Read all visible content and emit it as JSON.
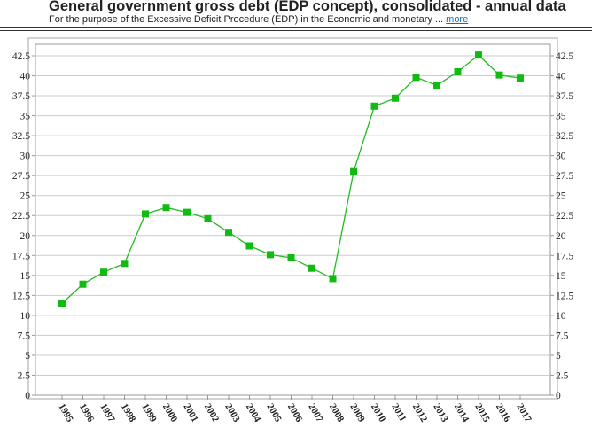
{
  "header": {
    "title": "General government gross debt (EDP concept), consolidated - annual data",
    "subtitle": "For the purpose of the Excessive Deficit Procedure (EDP) in the Economic and monetary ...",
    "more_label": "more"
  },
  "colors": {
    "series": "#22bb22",
    "marker": "#11bb11",
    "grid": "#cccccc",
    "frame": "#c4c4c4"
  },
  "chart_data": {
    "type": "line",
    "title": "General government gross debt (EDP concept), consolidated - annual data",
    "xlabel": "",
    "ylabel": "",
    "ylim": [
      0,
      42.5
    ],
    "ytick_step": 2.5,
    "grid": true,
    "yticks_both_sides": true,
    "categories": [
      "1995",
      "1996",
      "1997",
      "1998",
      "1999",
      "2000",
      "2001",
      "2002",
      "2003",
      "2004",
      "2005",
      "2006",
      "2007",
      "2008",
      "2009",
      "2010",
      "2011",
      "2012",
      "2013",
      "2014",
      "2015",
      "2016",
      "2017"
    ],
    "series": [
      {
        "values": [
          11.5,
          13.9,
          15.4,
          16.5,
          22.7,
          23.5,
          22.9,
          22.1,
          20.4,
          18.7,
          17.6,
          17.2,
          15.9,
          14.6,
          28.0,
          36.2,
          37.2,
          39.8,
          38.8,
          40.5,
          42.6,
          40.1,
          39.7
        ]
      }
    ]
  }
}
